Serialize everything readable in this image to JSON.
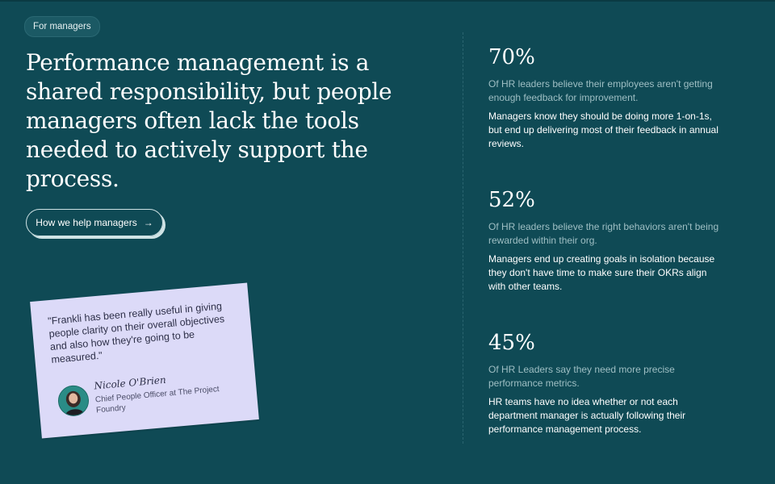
{
  "badge": "For managers",
  "headline": "Performance management is a shared responsibility, but people managers often lack the tools needed to actively support the process.",
  "cta": {
    "label": "How we help managers",
    "arrow": "→"
  },
  "testimonial": {
    "quote": "\"Frankli has been really useful in giving people clarity on their overall objectives and also how they're going to be measured.\"",
    "name": "Nicole O'Brien",
    "role": "Chief People Officer at The Project Foundry"
  },
  "stats": [
    {
      "value": "70%",
      "description": "Of HR leaders believe their employees aren't getting enough feedback for improvement.",
      "detail": "Managers know they should be doing more 1-on-1s, but end up delivering most of their feedback in annual reviews."
    },
    {
      "value": "52%",
      "description": "Of HR leaders believe the right behaviors aren't being rewarded within their org.",
      "detail": "Managers end up creating goals in isolation because they don't have time to make sure their OKRs align with other teams."
    },
    {
      "value": "45%",
      "description": "Of HR Leaders say they need more precise performance metrics.",
      "detail": "HR teams have no idea whether or not each department manager is actually following their performance management process."
    }
  ],
  "colors": {
    "background": "#0f4a55",
    "card": "#dcdaf8",
    "muted_text": "#9fbfc4"
  }
}
